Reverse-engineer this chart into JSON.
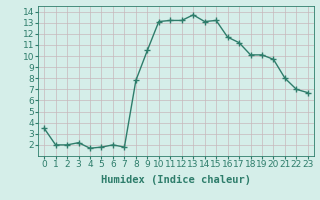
{
  "xlabel": "Humidex (Indice chaleur)",
  "ylabel": "",
  "x": [
    0,
    1,
    2,
    3,
    4,
    5,
    6,
    7,
    8,
    9,
    10,
    11,
    12,
    13,
    14,
    15,
    16,
    17,
    18,
    19,
    20,
    21,
    22,
    23
  ],
  "y": [
    3.5,
    2.0,
    2.0,
    2.2,
    1.7,
    1.8,
    2.0,
    1.8,
    7.8,
    10.5,
    13.1,
    13.2,
    13.2,
    13.7,
    13.1,
    13.2,
    11.7,
    11.2,
    10.1,
    10.1,
    9.7,
    8.0,
    7.0,
    6.7
  ],
  "line_color": "#2e7d6b",
  "marker": "+",
  "marker_size": 4,
  "bg_color": "#d5eee9",
  "grid_color": "#c8b8bc",
  "axes_color": "#2e7d6b",
  "tick_color": "#2e7d6b",
  "label_color": "#2e7d6b",
  "xlim": [
    -0.5,
    23.5
  ],
  "ylim": [
    1.0,
    14.5
  ],
  "yticks": [
    2,
    3,
    4,
    5,
    6,
    7,
    8,
    9,
    10,
    11,
    12,
    13,
    14
  ],
  "xticks": [
    0,
    1,
    2,
    3,
    4,
    5,
    6,
    7,
    8,
    9,
    10,
    11,
    12,
    13,
    14,
    15,
    16,
    17,
    18,
    19,
    20,
    21,
    22,
    23
  ],
  "xtick_labels": [
    "0",
    "1",
    "2",
    "3",
    "4",
    "5",
    "6",
    "7",
    "8",
    "9",
    "10",
    "11",
    "12",
    "13",
    "14",
    "15",
    "16",
    "17",
    "18",
    "19",
    "20",
    "21",
    "22",
    "23"
  ],
  "xlabel_fontsize": 7.5,
  "tick_fontsize": 6.5,
  "line_width": 1.0
}
